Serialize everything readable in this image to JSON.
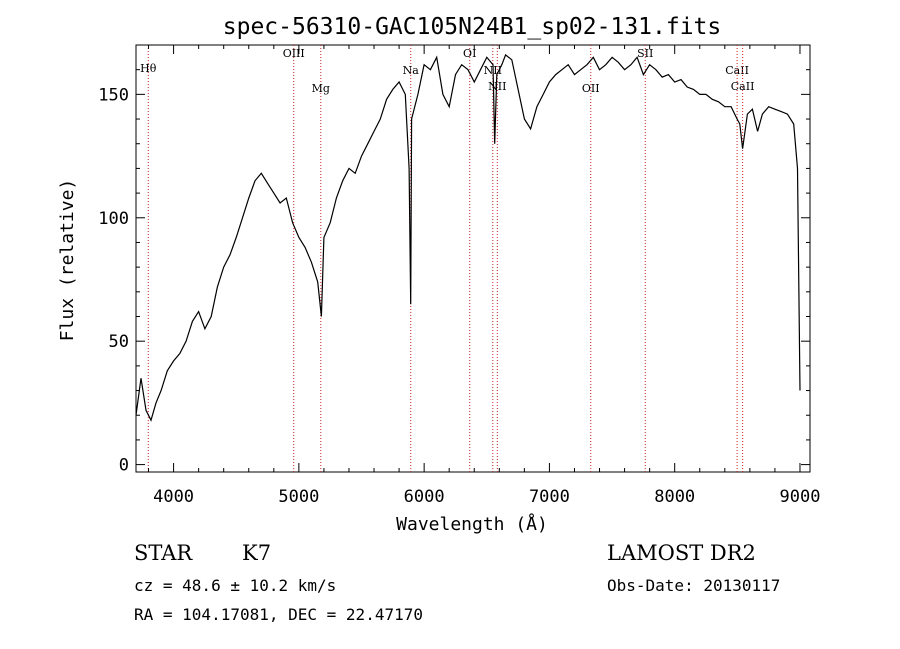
{
  "chart_data": {
    "type": "line",
    "title": "spec-56310-GAC105N24B1_sp02-131.fits",
    "xlabel": "Wavelength (Å)",
    "ylabel": "Flux (relative)",
    "xlim": [
      3700,
      9080
    ],
    "ylim": [
      -3,
      170
    ],
    "xticks": [
      4000,
      5000,
      6000,
      7000,
      8000,
      9000
    ],
    "yticks": [
      0,
      50,
      100,
      150
    ],
    "grid": false,
    "series": [
      {
        "color": "#000000",
        "x": [
          3700,
          3740,
          3780,
          3820,
          3860,
          3900,
          3950,
          4000,
          4050,
          4100,
          4150,
          4200,
          4250,
          4300,
          4350,
          4400,
          4450,
          4500,
          4550,
          4600,
          4650,
          4700,
          4750,
          4800,
          4850,
          4900,
          4950,
          5000,
          5050,
          5100,
          5150,
          5180,
          5200,
          5250,
          5300,
          5350,
          5400,
          5450,
          5500,
          5550,
          5600,
          5650,
          5700,
          5750,
          5800,
          5850,
          5880,
          5893,
          5900,
          5950,
          6000,
          6050,
          6100,
          6150,
          6200,
          6250,
          6300,
          6350,
          6400,
          6450,
          6500,
          6550,
          6563,
          6580,
          6620,
          6650,
          6700,
          6750,
          6800,
          6850,
          6900,
          6950,
          7000,
          7050,
          7100,
          7150,
          7200,
          7250,
          7300,
          7350,
          7400,
          7450,
          7500,
          7550,
          7600,
          7650,
          7700,
          7750,
          7800,
          7850,
          7900,
          7950,
          8000,
          8050,
          8100,
          8150,
          8200,
          8250,
          8300,
          8350,
          8400,
          8450,
          8498,
          8520,
          8542,
          8580,
          8620,
          8662,
          8700,
          8750,
          8800,
          8850,
          8900,
          8950,
          8980,
          9000
        ],
        "y": [
          20,
          35,
          22,
          18,
          25,
          30,
          38,
          42,
          45,
          50,
          58,
          62,
          55,
          60,
          72,
          80,
          85,
          92,
          100,
          108,
          115,
          118,
          114,
          110,
          106,
          108,
          98,
          92,
          88,
          82,
          74,
          60,
          92,
          98,
          108,
          115,
          120,
          118,
          125,
          130,
          135,
          140,
          148,
          152,
          155,
          150,
          120,
          65,
          140,
          150,
          162,
          160,
          165,
          150,
          145,
          158,
          162,
          160,
          155,
          160,
          165,
          162,
          130,
          158,
          162,
          166,
          164,
          152,
          140,
          136,
          145,
          150,
          155,
          158,
          160,
          162,
          158,
          160,
          162,
          165,
          160,
          162,
          165,
          163,
          160,
          162,
          165,
          158,
          162,
          160,
          157,
          158,
          155,
          156,
          153,
          152,
          150,
          150,
          148,
          147,
          145,
          145,
          140,
          138,
          128,
          142,
          144,
          135,
          142,
          145,
          144,
          143,
          142,
          138,
          120,
          30
        ]
      }
    ],
    "lines": [
      {
        "label": "Hθ",
        "x": 3798
      },
      {
        "label": "OIII",
        "x": 4959
      },
      {
        "label": "Mg",
        "x": 5175
      },
      {
        "label": "Na",
        "x": 5893
      },
      {
        "label": "OI",
        "x": 6364
      },
      {
        "label": "NII",
        "x": 6548
      },
      {
        "label": "NII",
        "x": 6584
      },
      {
        "label": "OII",
        "x": 7330
      },
      {
        "label": "SII",
        "x": 7765
      },
      {
        "label": "CaII",
        "x": 8498
      },
      {
        "label": "CaII",
        "x": 8542
      }
    ]
  },
  "info": {
    "object_class": "STAR",
    "subclass": "K7",
    "survey": "LAMOST DR2",
    "cz": "cz = 48.6 ± 10.2 km/s",
    "obs_date": "Obs-Date: 20130117",
    "coords": "RA = 104.17081, DEC =  22.47170"
  },
  "colors": {
    "spectrum": "#000000",
    "line_markers": "#cc2222"
  }
}
